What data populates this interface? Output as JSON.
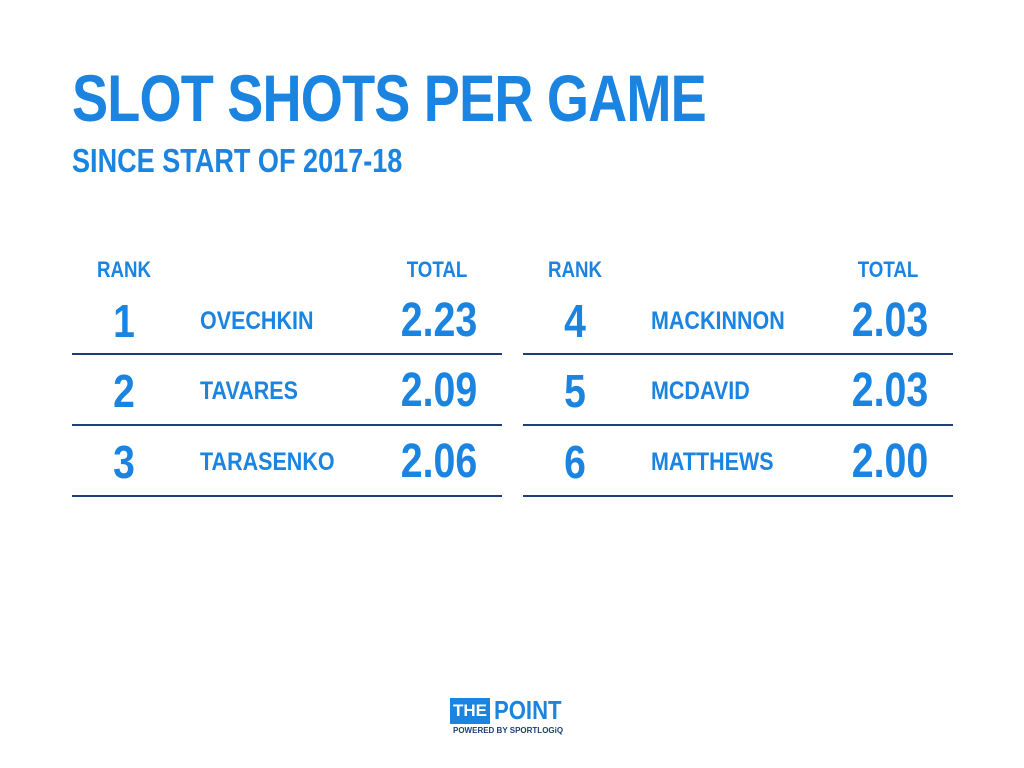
{
  "title": "SLOT SHOTS PER GAME",
  "subtitle": "SINCE START OF 2017-18",
  "colors": {
    "accent": "#1a84e0",
    "rule": "#1c3f78",
    "background": "#ffffff"
  },
  "chart_data": {
    "type": "table",
    "title": "SLOT SHOTS PER GAME",
    "subtitle": "SINCE START OF 2017-18",
    "columns": [
      "RANK",
      "",
      "TOTAL"
    ],
    "rows": [
      {
        "rank": "1",
        "name": "OVECHKIN",
        "total": "2.23"
      },
      {
        "rank": "2",
        "name": "TAVARES",
        "total": "2.09"
      },
      {
        "rank": "3",
        "name": "TARASENKO",
        "total": "2.06"
      },
      {
        "rank": "4",
        "name": "MACKINNON",
        "total": "2.03"
      },
      {
        "rank": "5",
        "name": "MCDAVID",
        "total": "2.03"
      },
      {
        "rank": "6",
        "name": "MATTHEWS",
        "total": "2.00"
      }
    ]
  },
  "tables": [
    {
      "header": {
        "rank": "RANK",
        "total": "TOTAL"
      },
      "rows": [
        {
          "rank": "1",
          "name": "OVECHKIN",
          "total": "2.23"
        },
        {
          "rank": "2",
          "name": "TAVARES",
          "total": "2.09"
        },
        {
          "rank": "3",
          "name": "TARASENKO",
          "total": "2.06"
        }
      ]
    },
    {
      "header": {
        "rank": "RANK",
        "total": "TOTAL"
      },
      "rows": [
        {
          "rank": "4",
          "name": "MACKINNON",
          "total": "2.03"
        },
        {
          "rank": "5",
          "name": "MCDAVID",
          "total": "2.03"
        },
        {
          "rank": "6",
          "name": "MATTHEWS",
          "total": "2.00"
        }
      ]
    }
  ],
  "logo": {
    "the": "THE",
    "point": "POINT",
    "powered": "POWERED BY SPORTLOGiQ"
  }
}
